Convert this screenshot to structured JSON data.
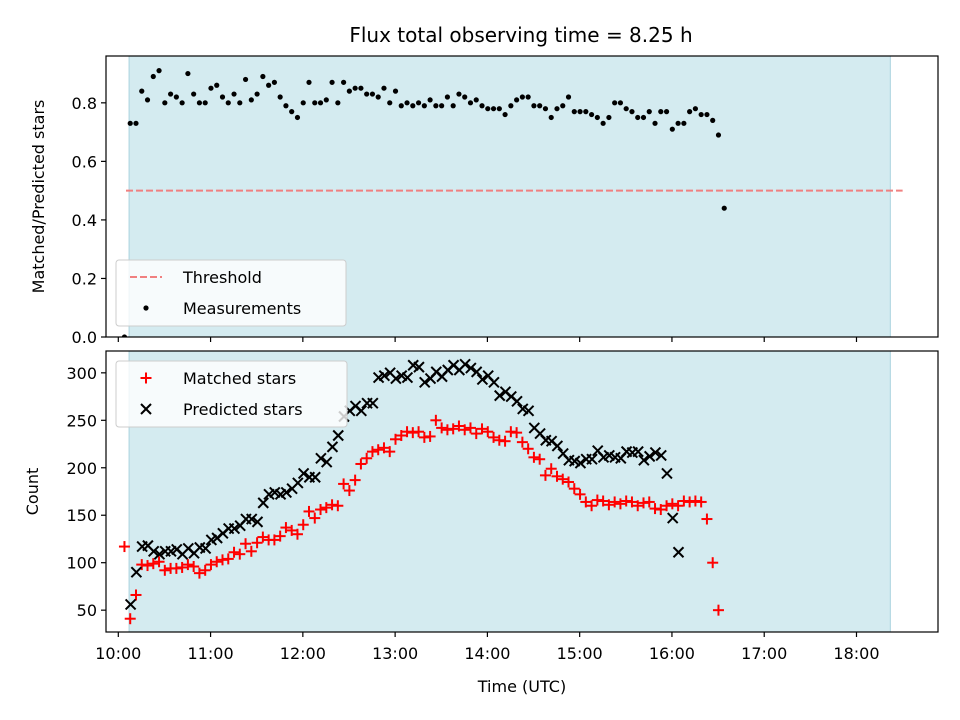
{
  "title": "Flux total observing time = 8.25 h",
  "colors": {
    "observing_span": "#d4ebf0",
    "observing_span_edge": "#a9d3df",
    "threshold": "#f08080",
    "measurements": "#000000",
    "matched": "#ff0000",
    "predicted": "#000000"
  },
  "chart_data": [
    {
      "type": "scatter",
      "panel": "top",
      "ylabel": "Matched/Predicted stars",
      "xlabel": "",
      "xlim": [
        "09:52",
        "18:53"
      ],
      "ylim": [
        0,
        0.96
      ],
      "yticks": [
        0.0,
        0.2,
        0.4,
        0.6,
        0.8
      ],
      "ytick_labels": [
        "0.0",
        "0.2",
        "0.4",
        "0.6",
        "0.8"
      ],
      "observing_span": [
        "10:07",
        "18:22"
      ],
      "grid": false,
      "legend_position": "lower-left",
      "threshold": {
        "name": "Threshold",
        "value": 0.5,
        "x_range": [
          "10:05",
          "18:30"
        ]
      },
      "legend": [
        "Threshold",
        "Measurements"
      ],
      "series": [
        {
          "name": "Measurements",
          "x_start": "10:04",
          "x_step_min": 3.75,
          "values": [
            0.0,
            0.73,
            0.73,
            0.84,
            0.81,
            0.89,
            0.91,
            0.8,
            0.83,
            0.82,
            0.8,
            0.9,
            0.83,
            0.8,
            0.8,
            0.85,
            0.86,
            0.82,
            0.8,
            0.83,
            0.8,
            0.88,
            0.81,
            0.83,
            0.89,
            0.86,
            0.87,
            0.82,
            0.79,
            0.77,
            0.75,
            0.8,
            0.87,
            0.8,
            0.8,
            0.81,
            0.87,
            0.8,
            0.87,
            0.84,
            0.85,
            0.85,
            0.83,
            0.83,
            0.82,
            0.85,
            0.8,
            0.84,
            0.79,
            0.8,
            0.79,
            0.8,
            0.79,
            0.81,
            0.79,
            0.79,
            0.82,
            0.79,
            0.83,
            0.82,
            0.8,
            0.81,
            0.79,
            0.78,
            0.78,
            0.78,
            0.76,
            0.79,
            0.81,
            0.82,
            0.82,
            0.79,
            0.79,
            0.78,
            0.75,
            0.78,
            0.79,
            0.82,
            0.77,
            0.77,
            0.77,
            0.76,
            0.75,
            0.73,
            0.75,
            0.8,
            0.8,
            0.78,
            0.77,
            0.75,
            0.75,
            0.77,
            0.73,
            0.77,
            0.77,
            0.71,
            0.73,
            0.73,
            0.77,
            0.78,
            0.76,
            0.76,
            0.74,
            0.69,
            0.44
          ]
        }
      ]
    },
    {
      "type": "scatter",
      "panel": "bottom",
      "ylabel": "Count",
      "xlabel": "Time (UTC)",
      "xlim": [
        "09:52",
        "18:53"
      ],
      "ylim": [
        27,
        323
      ],
      "yticks": [
        50,
        100,
        150,
        200,
        250,
        300
      ],
      "ytick_labels": [
        "50",
        "100",
        "150",
        "200",
        "250",
        "300"
      ],
      "xticks": [
        "10:00",
        "11:00",
        "12:00",
        "13:00",
        "14:00",
        "15:00",
        "16:00",
        "17:00",
        "18:00"
      ],
      "xtick_labels": [
        "10:00",
        "11:00",
        "12:00",
        "13:00",
        "14:00",
        "15:00",
        "16:00",
        "17:00",
        "18:00"
      ],
      "observing_span": [
        "10:07",
        "18:22"
      ],
      "grid": false,
      "legend_position": "upper-left",
      "legend": [
        "Matched stars",
        "Predicted stars"
      ],
      "series": [
        {
          "name": "Matched stars",
          "marker": "plus",
          "x_start": "10:04",
          "x_step_min": 3.75,
          "values": [
            117,
            41,
            66,
            98,
            97,
            99,
            101,
            92,
            94,
            94,
            95,
            98,
            96,
            89,
            92,
            98,
            101,
            103,
            104,
            111,
            109,
            120,
            112,
            121,
            127,
            124,
            124,
            128,
            137,
            134,
            130,
            140,
            154,
            147,
            156,
            158,
            161,
            160,
            183,
            176,
            187,
            204,
            210,
            217,
            219,
            221,
            217,
            230,
            234,
            238,
            237,
            238,
            232,
            233,
            250,
            242,
            240,
            241,
            244,
            240,
            242,
            236,
            241,
            238,
            232,
            229,
            228,
            238,
            237,
            227,
            220,
            211,
            209,
            192,
            199,
            191,
            188,
            185,
            178,
            172,
            164,
            160,
            166,
            165,
            161,
            164,
            162,
            165,
            164,
            160,
            163,
            164,
            157,
            156,
            160,
            162,
            160,
            165,
            164,
            165,
            164,
            146,
            100,
            50
          ]
        },
        {
          "name": "Predicted stars",
          "marker": "x",
          "x_start": "10:08",
          "x_step_min": 3.75,
          "values": [
            56,
            90,
            117,
            118,
            112,
            109,
            112,
            112,
            114,
            109,
            115,
            110,
            116,
            115,
            124,
            126,
            131,
            136,
            136,
            139,
            146,
            146,
            143,
            163,
            172,
            174,
            172,
            174,
            178,
            184,
            194,
            190,
            190,
            210,
            206,
            222,
            234,
            254,
            260,
            265,
            260,
            268,
            268,
            295,
            297,
            300,
            294,
            297,
            295,
            308,
            306,
            290,
            294,
            301,
            296,
            303,
            308,
            303,
            309,
            305,
            301,
            293,
            297,
            290,
            276,
            280,
            275,
            270,
            262,
            260,
            242,
            236,
            229,
            228,
            223,
            215,
            208,
            207,
            205,
            209,
            209,
            218,
            211,
            213,
            211,
            210,
            217,
            216,
            217,
            208,
            212,
            216,
            213,
            194,
            147,
            111
          ]
        }
      ]
    }
  ]
}
